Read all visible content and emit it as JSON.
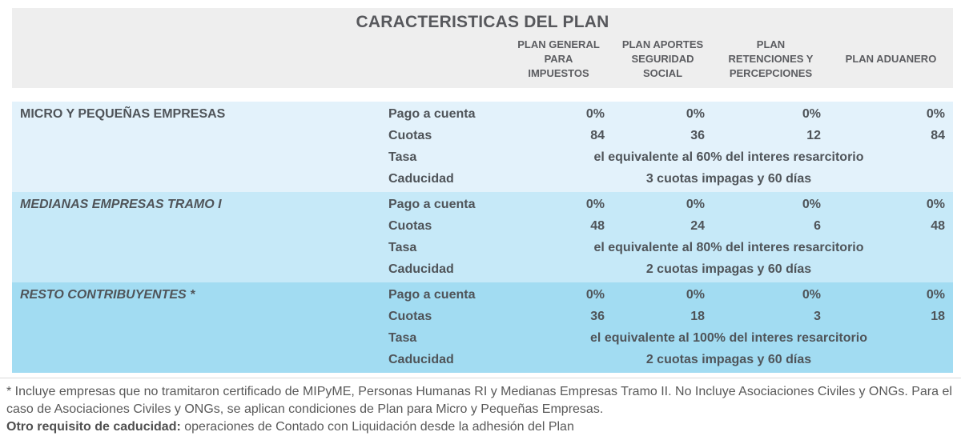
{
  "title": "CARACTERISTICAS DEL PLAN",
  "columns": [
    "PLAN GENERAL PARA IMPUESTOS",
    "PLAN APORTES SEGURIDAD SOCIAL",
    "PLAN RETENCIONES Y PERCEPCIONES",
    "PLAN ADUANERO"
  ],
  "row_labels": {
    "pago": "Pago a cuenta",
    "cuotas": "Cuotas",
    "tasa": "Tasa",
    "caducidad": "Caducidad"
  },
  "groups": [
    {
      "name": "MICRO Y PEQUEÑAS EMPRESAS",
      "pago": [
        "0%",
        "0%",
        "0%",
        "0%"
      ],
      "cuotas": [
        "84",
        "36",
        "12",
        "84"
      ],
      "tasa": "el equivalente al 60% del interes resarcitorio",
      "caducidad": "3 cuotas impagas y 60 días"
    },
    {
      "name": "MEDIANAS EMPRESAS TRAMO I",
      "pago": [
        "0%",
        "0%",
        "0%",
        "0%"
      ],
      "cuotas": [
        "48",
        "24",
        "6",
        "48"
      ],
      "tasa": "el equivalente al 80% del interes resarcitorio",
      "caducidad": "2 cuotas impagas y 60 días"
    },
    {
      "name": "RESTO CONTRIBUYENTES *",
      "pago": [
        "0%",
        "0%",
        "0%",
        "0%"
      ],
      "cuotas": [
        "36",
        "18",
        "3",
        "18"
      ],
      "tasa": "el equivalente al 100% del interes resarcitorio",
      "caducidad": "2 cuotas impagas y 60 días"
    }
  ],
  "footnote": {
    "asterisk_note": "* Incluye empresas que no tramitaron certificado de MIPyME, Personas Humanas RI y Medianas Empresas Tramo II. No Incluye Asociaciones Civiles y ONGs. Para el caso de Asociaciones Civiles y ONGs, se aplican condiciones de Plan para Micro y Pequeñas Empresas.",
    "caducidad_lead": "Otro requisito de caducidad:",
    "caducidad_rest": " operaciones de Contado con Liquidación desde la adhesión del Plan"
  },
  "colors": {
    "header_bg": "#eeeeee",
    "group_bgs": [
      "#e3f2fb",
      "#c6e9f8",
      "#a2dcf2"
    ],
    "table_text": "#4f5459",
    "footnote_text": "#595959",
    "divider": "#d9d9d9"
  }
}
